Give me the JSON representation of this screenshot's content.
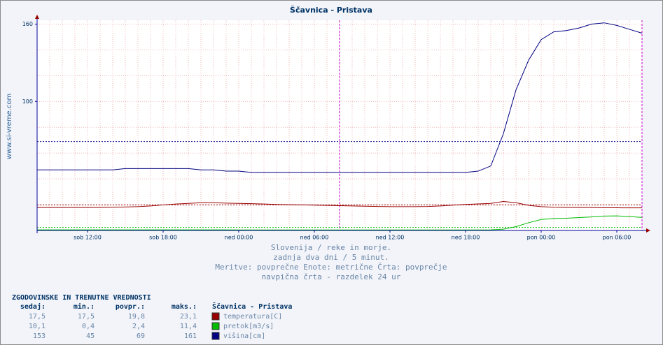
{
  "chart_data": {
    "type": "line",
    "title": "Ščavnica - Pristava",
    "side_label": "www.si-vreme.com",
    "subtitle_lines": [
      "Slovenija / reke in morje.",
      "zadnja dva dni / 5 minut.",
      "Meritve: povprečne  Enote: metrične  Črta: povprečje",
      "navpična črta - razdelek 24 ur"
    ],
    "x": [
      0,
      1,
      2,
      3,
      4,
      5,
      6,
      7,
      8,
      9,
      10,
      11,
      12,
      13,
      14,
      15,
      16,
      17,
      18,
      19,
      20,
      21,
      22,
      23,
      24,
      25,
      26,
      27,
      28,
      29,
      30,
      31,
      32,
      33,
      34,
      35,
      36,
      37,
      38,
      39,
      40,
      41,
      42,
      43,
      44,
      45,
      46,
      47,
      48
    ],
    "xlim": [
      0,
      48
    ],
    "xticks": [
      {
        "value": 4,
        "label": "sob 12:00"
      },
      {
        "value": 10,
        "label": "sob 18:00"
      },
      {
        "value": 16,
        "label": "ned 00:00"
      },
      {
        "value": 22,
        "label": "ned 06:00"
      },
      {
        "value": 28,
        "label": "ned 12:00"
      },
      {
        "value": 34,
        "label": "ned 18:00"
      },
      {
        "value": 40,
        "label": "pon 00:00"
      },
      {
        "value": 46,
        "label": "pon 06:00"
      }
    ],
    "xgrid": [
      1,
      2,
      3,
      4,
      5,
      6,
      7,
      8,
      9,
      10,
      11,
      12,
      13,
      14,
      15,
      16,
      17,
      18,
      19,
      20,
      21,
      22,
      23,
      24,
      25,
      26,
      27,
      28,
      29,
      30,
      31,
      32,
      33,
      34,
      35,
      36,
      37,
      38,
      39,
      40,
      41,
      42,
      43,
      44,
      45,
      46,
      47
    ],
    "vlines": [
      24,
      48
    ],
    "ylim": [
      0,
      163
    ],
    "yticks": [
      100,
      160
    ],
    "ygrid": [
      20,
      40,
      60,
      80,
      100,
      120,
      140,
      160
    ],
    "grid": true,
    "series": [
      {
        "name": "temperatura[C]",
        "color": "#990000",
        "mean": 19.8,
        "values": [
          17.8,
          17.8,
          17.8,
          17.8,
          17.8,
          17.9,
          18,
          18.2,
          18.5,
          19,
          19.8,
          20.5,
          21,
          21.5,
          21.5,
          21.2,
          21,
          20.8,
          20.5,
          20.2,
          20,
          19.8,
          19.6,
          19.4,
          19.2,
          19,
          18.8,
          18.6,
          18.5,
          18.5,
          18.5,
          18.6,
          19,
          19.6,
          20.2,
          20.6,
          21,
          22.5,
          21.5,
          19.5,
          18.5,
          18,
          17.9,
          17.8,
          17.8,
          17.7,
          17.6,
          17.5,
          17.5
        ]
      },
      {
        "name": "pretok[m3/s]",
        "color": "#00bb00",
        "mean": 2.4,
        "values": [
          0.5,
          0.5,
          0.5,
          0.5,
          0.5,
          0.5,
          0.5,
          0.5,
          0.5,
          0.5,
          0.5,
          0.5,
          0.5,
          0.5,
          0.5,
          0.5,
          0.4,
          0.4,
          0.4,
          0.4,
          0.4,
          0.4,
          0.4,
          0.4,
          0.4,
          0.4,
          0.4,
          0.4,
          0.4,
          0.4,
          0.4,
          0.4,
          0.4,
          0.4,
          0.4,
          0.4,
          0.5,
          1,
          3,
          6,
          8.5,
          9.3,
          9.5,
          10,
          10.5,
          11.2,
          11.3,
          10.8,
          10.1
        ]
      },
      {
        "name": "višina[cm]",
        "color": "#000080",
        "mean": 69,
        "values": [
          47,
          47,
          47,
          47,
          47,
          47,
          47,
          48,
          48,
          48,
          48,
          48,
          48,
          47,
          47,
          46,
          46,
          45,
          45,
          45,
          45,
          45,
          45,
          45,
          45,
          45,
          45,
          45,
          45,
          45,
          45,
          45,
          45,
          45,
          45,
          46,
          50,
          75,
          109,
          132,
          148,
          154,
          155,
          157,
          160,
          161,
          159,
          156,
          153
        ]
      }
    ]
  },
  "table": {
    "title": "ZGODOVINSKE IN TRENUTNE VREDNOSTI",
    "headers": [
      "sedaj:",
      "min.:",
      "povpr.:",
      "maks.:",
      "Ščavnica - Pristava"
    ],
    "rows": [
      [
        "17,5",
        "17,5",
        "19,8",
        "23,1"
      ],
      [
        "10,1",
        "0,4",
        "2,4",
        "11,4"
      ],
      [
        "153",
        "45",
        "69",
        "161"
      ]
    ]
  }
}
